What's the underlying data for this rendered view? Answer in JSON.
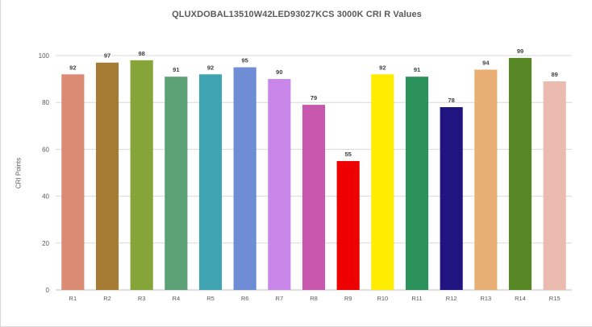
{
  "chart_data": {
    "type": "bar",
    "title": "QLUXDOBAL13510W42LED93027KCS 3000K CRI R Values",
    "xlabel": "",
    "ylabel": "CRI Points",
    "categories": [
      "R1",
      "R2",
      "R3",
      "R4",
      "R5",
      "R6",
      "R7",
      "R8",
      "R9",
      "R10",
      "R11",
      "R12",
      "R13",
      "R14",
      "R15"
    ],
    "values": [
      92,
      97,
      98,
      91,
      92,
      95,
      90,
      79,
      55,
      92,
      91,
      78,
      94,
      99,
      89
    ],
    "data_labels": [
      "92",
      "97",
      "98",
      "91",
      "92",
      "95",
      "90",
      "79",
      "55",
      "92",
      "91",
      "78",
      "94",
      "99",
      "89"
    ],
    "colors": [
      "#DB8A74",
      "#A67C35",
      "#86A538",
      "#5BA175",
      "#40A3B1",
      "#6E8DD4",
      "#C887E8",
      "#C857AE",
      "#EE0000",
      "#FFEC00",
      "#2C925B",
      "#1F1480",
      "#E8AF74",
      "#588726",
      "#EBBBB0"
    ],
    "ylim": [
      0,
      100
    ],
    "yticks": [
      0,
      20,
      40,
      60,
      80,
      100
    ],
    "ytick_labels": [
      "0",
      "20",
      "40",
      "60",
      "80",
      "100"
    ],
    "grid": true,
    "legend": "none"
  }
}
